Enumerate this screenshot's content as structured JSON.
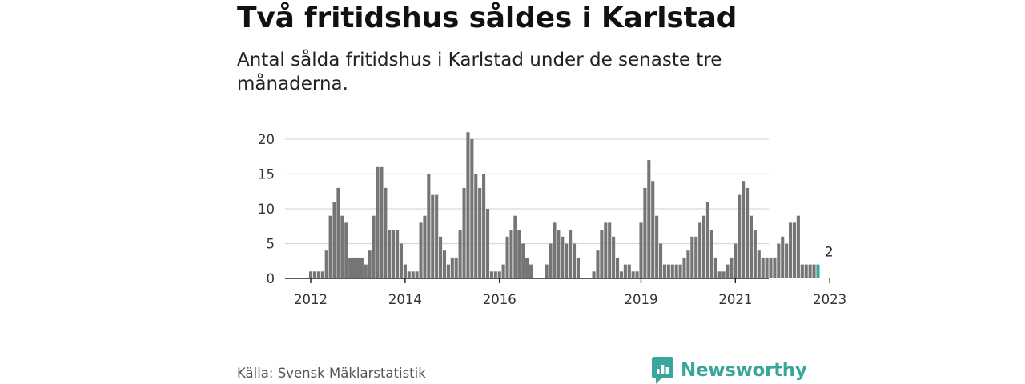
{
  "header": {
    "title": "Två fritidshus såldes i Karlstad",
    "subtitle": "Antal sålda fritidshus i Karlstad under de senaste tre månaderna."
  },
  "footer": {
    "source": "Källa: Svensk Mäklarstatistik",
    "brand": "Newsworthy",
    "brand_icon": "bar-chart-speech-bubble-icon"
  },
  "colors": {
    "bar": "#757575",
    "highlight": "#3aa69a",
    "grid": "#d9d9d9",
    "axis": "#222222",
    "brand": "#3aa69a"
  },
  "chart_data": {
    "type": "bar",
    "title": "Två fritidshus såldes i Karlstad",
    "subtitle": "Antal sålda fritidshus i Karlstad under de senaste tre månaderna.",
    "xlabel": "",
    "ylabel": "",
    "ylim": [
      0,
      21
    ],
    "yticks": [
      0,
      5,
      10,
      15,
      20
    ],
    "grid": true,
    "legend": "none",
    "x_start": "2012-01",
    "frequency": "monthly",
    "xticks": [
      {
        "label": "2012",
        "month": "2012-01"
      },
      {
        "label": "2014",
        "month": "2014-01"
      },
      {
        "label": "2016",
        "month": "2016-01"
      },
      {
        "label": "2019",
        "month": "2019-01"
      },
      {
        "label": "2021",
        "month": "2021-01"
      },
      {
        "label": "2023",
        "month": "2023-01"
      }
    ],
    "series": [
      {
        "values": [
          1,
          1,
          1,
          1,
          4,
          9,
          11,
          13,
          9,
          8,
          3,
          3,
          3,
          3,
          2,
          4,
          9,
          16,
          16,
          13,
          7,
          7,
          7,
          5,
          2,
          1,
          1,
          1,
          8,
          9,
          15,
          12,
          12,
          6,
          4,
          2,
          3,
          3,
          7,
          13,
          21,
          20,
          15,
          13,
          15,
          10,
          1,
          1,
          1,
          2,
          6,
          7,
          9,
          7,
          5,
          3,
          2,
          null,
          null,
          null,
          2,
          5,
          8,
          7,
          6,
          5,
          7,
          5,
          3,
          null,
          null,
          null,
          1,
          4,
          7,
          8,
          8,
          6,
          3,
          1,
          2,
          2,
          1,
          1,
          8,
          13,
          17,
          14,
          9,
          5,
          2,
          2,
          2,
          2,
          2,
          3,
          4,
          6,
          6,
          8,
          9,
          11,
          7,
          3,
          1,
          1,
          2,
          3,
          5,
          12,
          14,
          13,
          9,
          7,
          4,
          3,
          3,
          3,
          3,
          5,
          6,
          5,
          8,
          8,
          9,
          2,
          2,
          2,
          2,
          2
        ]
      }
    ],
    "annotation": {
      "label": "2",
      "value": 2,
      "month": "2023-01"
    }
  }
}
